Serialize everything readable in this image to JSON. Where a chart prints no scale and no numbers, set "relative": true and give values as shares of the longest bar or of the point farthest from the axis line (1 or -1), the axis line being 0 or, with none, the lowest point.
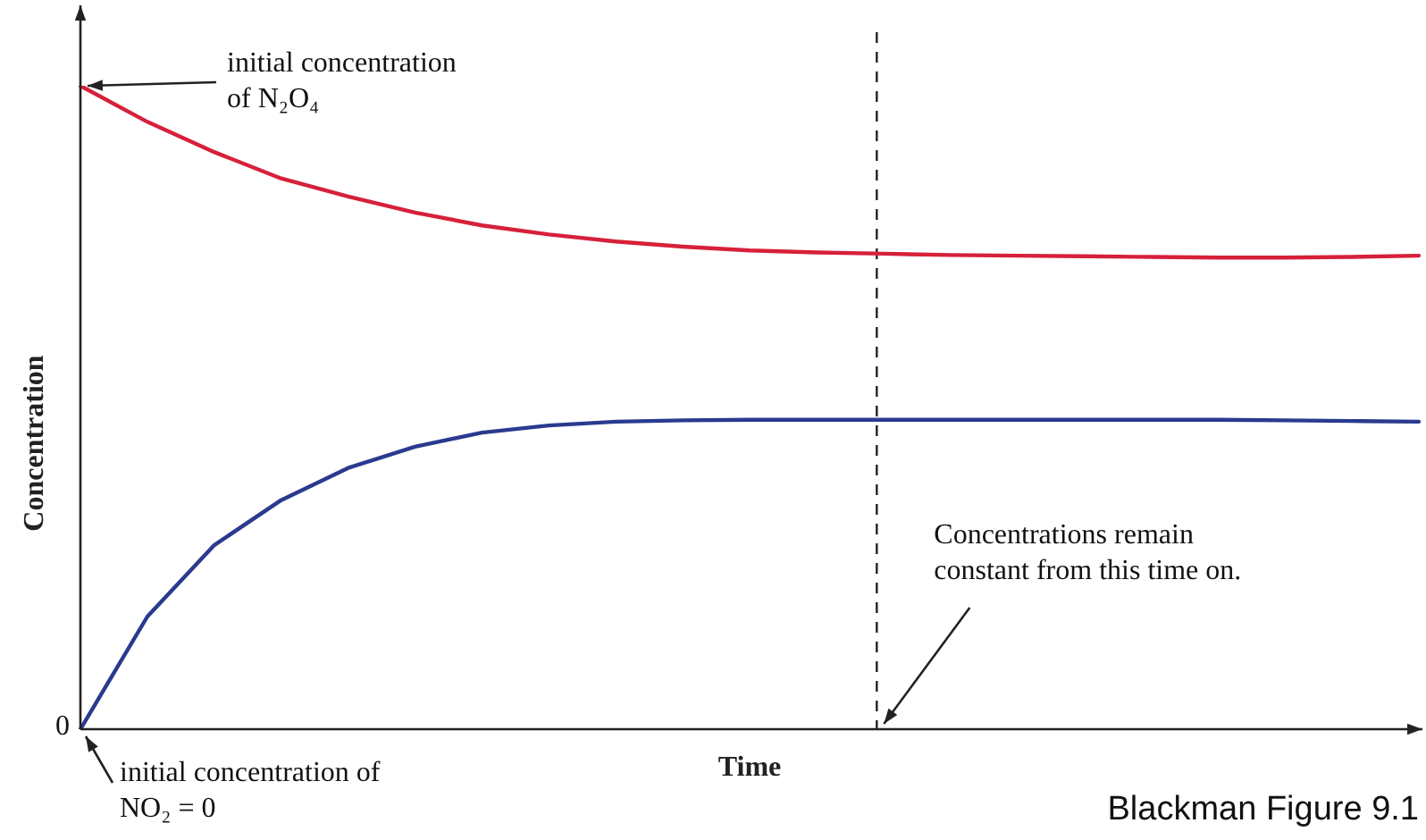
{
  "chart_data": {
    "type": "line",
    "relative": true,
    "xlabel": "Time",
    "ylabel": "Concentration",
    "legend": false,
    "marker": "none",
    "categories": [
      null,
      null,
      null,
      null,
      null,
      null,
      null,
      null,
      null,
      null,
      null,
      null,
      null,
      null,
      null,
      null,
      null,
      null,
      null,
      null,
      null
    ],
    "series": [
      {
        "color": "#d6203a",
        "values": [
          1.0,
          0.944,
          0.897,
          0.856,
          0.828,
          0.803,
          0.783,
          0.769,
          0.758,
          0.75,
          0.744,
          0.741,
          0.739,
          0.737,
          0.736,
          0.735,
          0.734,
          0.733,
          0.733,
          0.734,
          0.736
        ]
      },
      {
        "color": "#2a3a8f",
        "values": [
          0,
          0.175,
          0.286,
          0.356,
          0.406,
          0.439,
          0.461,
          0.472,
          0.478,
          0.48,
          0.481,
          0.481,
          0.481,
          0.481,
          0.481,
          0.481,
          0.481,
          0.481,
          0.48,
          0.479,
          0.478
        ]
      }
    ],
    "annotations": [
      "initial concentration of N₂O₄",
      "initial concentration of NO₂ = 0",
      "Concentrations remain constant from this time on.",
      "0",
      "Blackman Figure 9.1"
    ]
  }
}
